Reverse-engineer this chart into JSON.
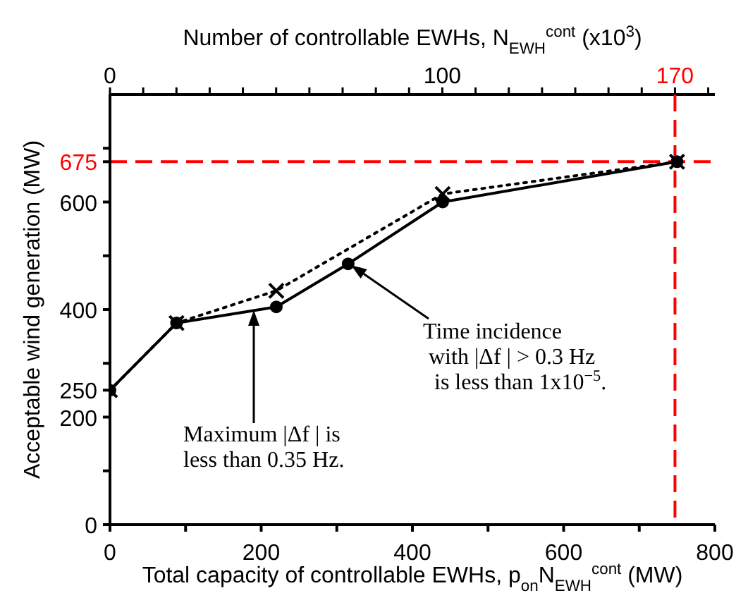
{
  "chart_data": {
    "type": "line",
    "xlabel": "Total capacity of controllable EWHs, p$_{on}$N$_{EWH}$$^{cont}$  (MW)",
    "x2label": "Number of controllable EWHs, N$_{EWH}$$^{cont}$ (x10$^{3}$)",
    "ylabel": "Acceptable wind generation  (MW)",
    "xlim": [
      0,
      800
    ],
    "xticks": [
      0,
      {
        "value": 100,
        "label": null
      },
      200,
      {
        "value": 300,
        "label": null
      },
      400,
      {
        "value": 500,
        "label": null
      },
      600,
      {
        "value": 700,
        "label": null
      },
      800
    ],
    "x2lim": [
      0,
      182
    ],
    "x2ticks": [
      0,
      {
        "value": 10,
        "label": null
      },
      {
        "value": 20,
        "label": null
      },
      {
        "value": 30,
        "label": null
      },
      {
        "value": 40,
        "label": null
      },
      {
        "value": 50,
        "label": null
      },
      {
        "value": 60,
        "label": null
      },
      {
        "value": 70,
        "label": null
      },
      {
        "value": 80,
        "label": null
      },
      {
        "value": 90,
        "label": null
      },
      100,
      {
        "value": 110,
        "label": null
      },
      {
        "value": 120,
        "label": null
      },
      {
        "value": 130,
        "label": null
      },
      {
        "value": 140,
        "label": null
      },
      {
        "value": 150,
        "label": null
      },
      {
        "value": 160,
        "label": null
      },
      170,
      {
        "value": 180,
        "label": null
      }
    ],
    "ylim": [
      0,
      800
    ],
    "yticks": [
      0,
      {
        "value": 100,
        "label": null
      },
      200,
      250,
      {
        "value": 300,
        "label": null
      },
      400,
      {
        "value": 500,
        "label": null
      },
      600,
      675,
      {
        "value": 700,
        "label": null
      }
    ],
    "series": [
      {
        "color": "#000000",
        "x": [
          0,
          88,
          220,
          315,
          440,
          750
        ],
        "values": [
          250,
          375,
          405,
          485,
          600,
          675
        ],
        "marker": "circle",
        "line_style": "solid"
      },
      {
        "color": "#000000",
        "x": [
          0,
          88,
          220,
          440,
          750
        ],
        "values": [
          250,
          375,
          435,
          615,
          675
        ],
        "marker": "cross",
        "line_style": "dotted"
      }
    ],
    "ref_lines": [
      {
        "axis": "x2",
        "value": 170,
        "color": "#ff0000",
        "line_style": "dashed"
      },
      {
        "axis": "y",
        "value": 675,
        "color": "#ff0000",
        "line_style": "dashed"
      }
    ],
    "annotations": [
      "Maximum |Δf | is\nless than 0.35 Hz.",
      "Time incidence\nwith |Δf | > 0.3 Hz\nis less than 1x10$^{−5}$."
    ]
  }
}
